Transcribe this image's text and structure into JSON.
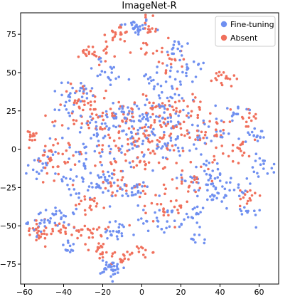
{
  "chart_data": {
    "type": "scatter",
    "title": "ImageNet-R",
    "xlabel": "",
    "ylabel": "",
    "xlim": [
      -62,
      70
    ],
    "ylim": [
      -88,
      89
    ],
    "xticks": [
      -60,
      -40,
      -20,
      0,
      20,
      40,
      60
    ],
    "yticks": [
      -75,
      -50,
      -25,
      0,
      25,
      50,
      75
    ],
    "grid": false,
    "legend_position": "top-right",
    "series": [
      {
        "name": "Fine-tuning",
        "color": "#6f8ff0",
        "clusters": [
          {
            "center": [
              -3,
              80
            ],
            "spread": [
              4,
              3
            ],
            "count": 26
          },
          {
            "center": [
              19,
              66
            ],
            "spread": [
              4,
              3
            ],
            "count": 14
          },
          {
            "center": [
              27,
              52
            ],
            "spread": [
              3,
              3
            ],
            "count": 12
          },
          {
            "center": [
              -33,
              38
            ],
            "spread": [
              6,
              4
            ],
            "count": 22
          },
          {
            "center": [
              -39,
              27
            ],
            "spread": [
              3,
              3
            ],
            "count": 10
          },
          {
            "center": [
              48,
              25
            ],
            "spread": [
              4,
              3
            ],
            "count": 12
          },
          {
            "center": [
              58,
              9
            ],
            "spread": [
              4,
              3
            ],
            "count": 16
          },
          {
            "center": [
              -14,
              20
            ],
            "spread": [
              8,
              6
            ],
            "count": 40
          },
          {
            "center": [
              10,
              22
            ],
            "spread": [
              10,
              8
            ],
            "count": 55
          },
          {
            "center": [
              -2,
              5
            ],
            "spread": [
              12,
              10
            ],
            "count": 70
          },
          {
            "center": [
              33,
              -19
            ],
            "spread": [
              6,
              5
            ],
            "count": 38
          },
          {
            "center": [
              39,
              -30
            ],
            "spread": [
              4,
              4
            ],
            "count": 16
          },
          {
            "center": [
              63,
              -10
            ],
            "spread": [
              3,
              4
            ],
            "count": 16
          },
          {
            "center": [
              46,
              -25
            ],
            "spread": [
              4,
              3
            ],
            "count": 14
          },
          {
            "center": [
              -20,
              -23
            ],
            "spread": [
              4,
              5
            ],
            "count": 30
          },
          {
            "center": [
              -5,
              -27
            ],
            "spread": [
              5,
              3
            ],
            "count": 24
          },
          {
            "center": [
              -50,
              -47
            ],
            "spread": [
              4,
              4
            ],
            "count": 26
          },
          {
            "center": [
              -40,
              -45
            ],
            "spread": [
              3,
              3
            ],
            "count": 16
          },
          {
            "center": [
              -37,
              -64
            ],
            "spread": [
              2,
              2
            ],
            "count": 12
          },
          {
            "center": [
              -13,
              -55
            ],
            "spread": [
              5,
              4
            ],
            "count": 22
          },
          {
            "center": [
              -15,
              -78
            ],
            "spread": [
              3,
              3
            ],
            "count": 34
          },
          {
            "center": [
              9,
              -45
            ],
            "spread": [
              6,
              5
            ],
            "count": 26
          },
          {
            "center": [
              28,
              -60
            ],
            "spread": [
              2,
              2
            ],
            "count": 8
          },
          {
            "center": [
              23,
              -42
            ],
            "spread": [
              5,
              5
            ],
            "count": 18
          },
          {
            "center": [
              -33,
              -20
            ],
            "spread": [
              5,
              6
            ],
            "count": 24
          },
          {
            "center": [
              -50,
              -10
            ],
            "spread": [
              4,
              6
            ],
            "count": 18
          },
          {
            "center": [
              -28,
              2
            ],
            "spread": [
              8,
              8
            ],
            "count": 30
          },
          {
            "center": [
              30,
              6
            ],
            "spread": [
              8,
              8
            ],
            "count": 34
          },
          {
            "center": [
              53,
              -42
            ],
            "spread": [
              4,
              3
            ],
            "count": 12
          },
          {
            "center": [
              12,
              45
            ],
            "spread": [
              10,
              6
            ],
            "count": 32
          },
          {
            "center": [
              -18,
              50
            ],
            "spread": [
              6,
              5
            ],
            "count": 20
          }
        ]
      },
      {
        "name": "Absent",
        "color": "#f0705c",
        "clusters": [
          {
            "center": [
              -12,
              76
            ],
            "spread": [
              3,
              3
            ],
            "count": 22
          },
          {
            "center": [
              4,
              78
            ],
            "spread": [
              2,
              4
            ],
            "count": 16
          },
          {
            "center": [
              -30,
              62
            ],
            "spread": [
              3,
              2
            ],
            "count": 12
          },
          {
            "center": [
              42,
              46
            ],
            "spread": [
              3,
              3
            ],
            "count": 18
          },
          {
            "center": [
              -56,
              8
            ],
            "spread": [
              2,
              2
            ],
            "count": 12
          },
          {
            "center": [
              -50,
              -5
            ],
            "spread": [
              3,
              6
            ],
            "count": 14
          },
          {
            "center": [
              -54,
              -53
            ],
            "spread": [
              5,
              4
            ],
            "count": 28
          },
          {
            "center": [
              -38,
              -52
            ],
            "spread": [
              4,
              3
            ],
            "count": 18
          },
          {
            "center": [
              -26,
              -52
            ],
            "spread": [
              4,
              4
            ],
            "count": 20
          },
          {
            "center": [
              -26,
              -36
            ],
            "spread": [
              4,
              3
            ],
            "count": 16
          },
          {
            "center": [
              -22,
              -66
            ],
            "spread": [
              3,
              3
            ],
            "count": 16
          },
          {
            "center": [
              -10,
              -70
            ],
            "spread": [
              3,
              3
            ],
            "count": 16
          },
          {
            "center": [
              -1,
              -67
            ],
            "spread": [
              3,
              2
            ],
            "count": 12
          },
          {
            "center": [
              -18,
              20
            ],
            "spread": [
              10,
              8
            ],
            "count": 50
          },
          {
            "center": [
              8,
              15
            ],
            "spread": [
              12,
              10
            ],
            "count": 65
          },
          {
            "center": [
              -3,
              -3
            ],
            "spread": [
              12,
              8
            ],
            "count": 60
          },
          {
            "center": [
              22,
              30
            ],
            "spread": [
              8,
              6
            ],
            "count": 30
          },
          {
            "center": [
              34,
              10
            ],
            "spread": [
              8,
              8
            ],
            "count": 34
          },
          {
            "center": [
              50,
              0
            ],
            "spread": [
              4,
              4
            ],
            "count": 18
          },
          {
            "center": [
              55,
              21
            ],
            "spread": [
              2,
              3
            ],
            "count": 12
          },
          {
            "center": [
              54,
              -32
            ],
            "spread": [
              2,
              4
            ],
            "count": 14
          },
          {
            "center": [
              13,
              -37
            ],
            "spread": [
              6,
              6
            ],
            "count": 28
          },
          {
            "center": [
              -40,
              -2
            ],
            "spread": [
              6,
              8
            ],
            "count": 26
          },
          {
            "center": [
              -30,
              30
            ],
            "spread": [
              6,
              6
            ],
            "count": 26
          },
          {
            "center": [
              -12,
              -24
            ],
            "spread": [
              6,
              4
            ],
            "count": 22
          },
          {
            "center": [
              24,
              -20
            ],
            "spread": [
              6,
              5
            ],
            "count": 22
          },
          {
            "center": [
              12,
              60
            ],
            "spread": [
              8,
              5
            ],
            "count": 24
          },
          {
            "center": [
              -20,
              62
            ],
            "spread": [
              4,
              3
            ],
            "count": 12
          }
        ]
      }
    ]
  }
}
